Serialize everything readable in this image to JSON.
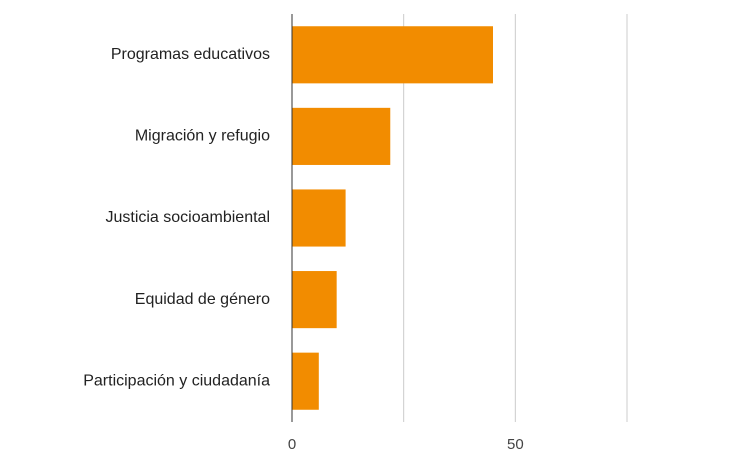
{
  "chart_data": {
    "type": "bar",
    "orientation": "horizontal",
    "categories": [
      "Programas educativos",
      "Migración y refugio",
      "Justicia socioambiental",
      "Equidad de género",
      "Participación y ciudadanía"
    ],
    "values": [
      45,
      22,
      12,
      10,
      6
    ],
    "title": "",
    "xlabel": "",
    "ylabel": "",
    "xlim": [
      0,
      75
    ],
    "x_ticks": [
      0,
      50
    ],
    "x_tick_labels": [
      "0",
      "50"
    ],
    "gridlines": [
      0,
      25,
      50,
      75
    ],
    "grid": true,
    "legend": "none",
    "bar_color": "#f28c00"
  }
}
